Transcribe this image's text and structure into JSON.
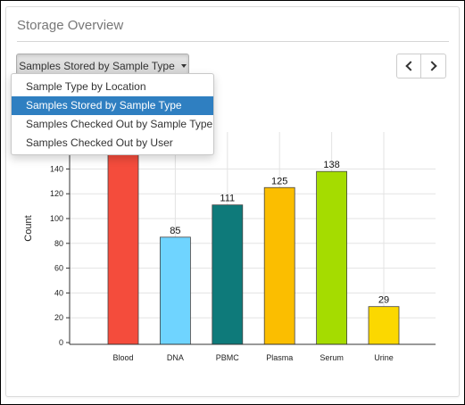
{
  "panel": {
    "title": "Storage Overview"
  },
  "dropdown": {
    "selected_label": "Samples Stored by Sample Type",
    "items": [
      {
        "label": "Sample Type by Location"
      },
      {
        "label": "Samples Stored by Sample Type"
      },
      {
        "label": "Samples Checked Out by Sample Type"
      },
      {
        "label": "Samples Checked Out by User"
      }
    ],
    "active_index": 1
  },
  "pager": {
    "prev_icon": "chevron-left-icon",
    "next_icon": "chevron-right-icon"
  },
  "chart_data": {
    "type": "bar",
    "categories": [
      "Blood",
      "DNA",
      "PBMC",
      "Plasma",
      "Serum",
      "Urine"
    ],
    "values": [
      160,
      85,
      111,
      125,
      138,
      29
    ],
    "value_labels": [
      "",
      "85",
      "111",
      "125",
      "138",
      "29"
    ],
    "colors": [
      "#f44c3c",
      "#6fd4ff",
      "#0e7a7a",
      "#fbbe00",
      "#a5dc00",
      "#fbd800"
    ],
    "ylabel": "Count",
    "xlabel": "",
    "yticks": [
      0,
      20,
      40,
      60,
      80,
      100,
      120,
      140
    ],
    "ylim": [
      0,
      175
    ],
    "grid": true
  }
}
